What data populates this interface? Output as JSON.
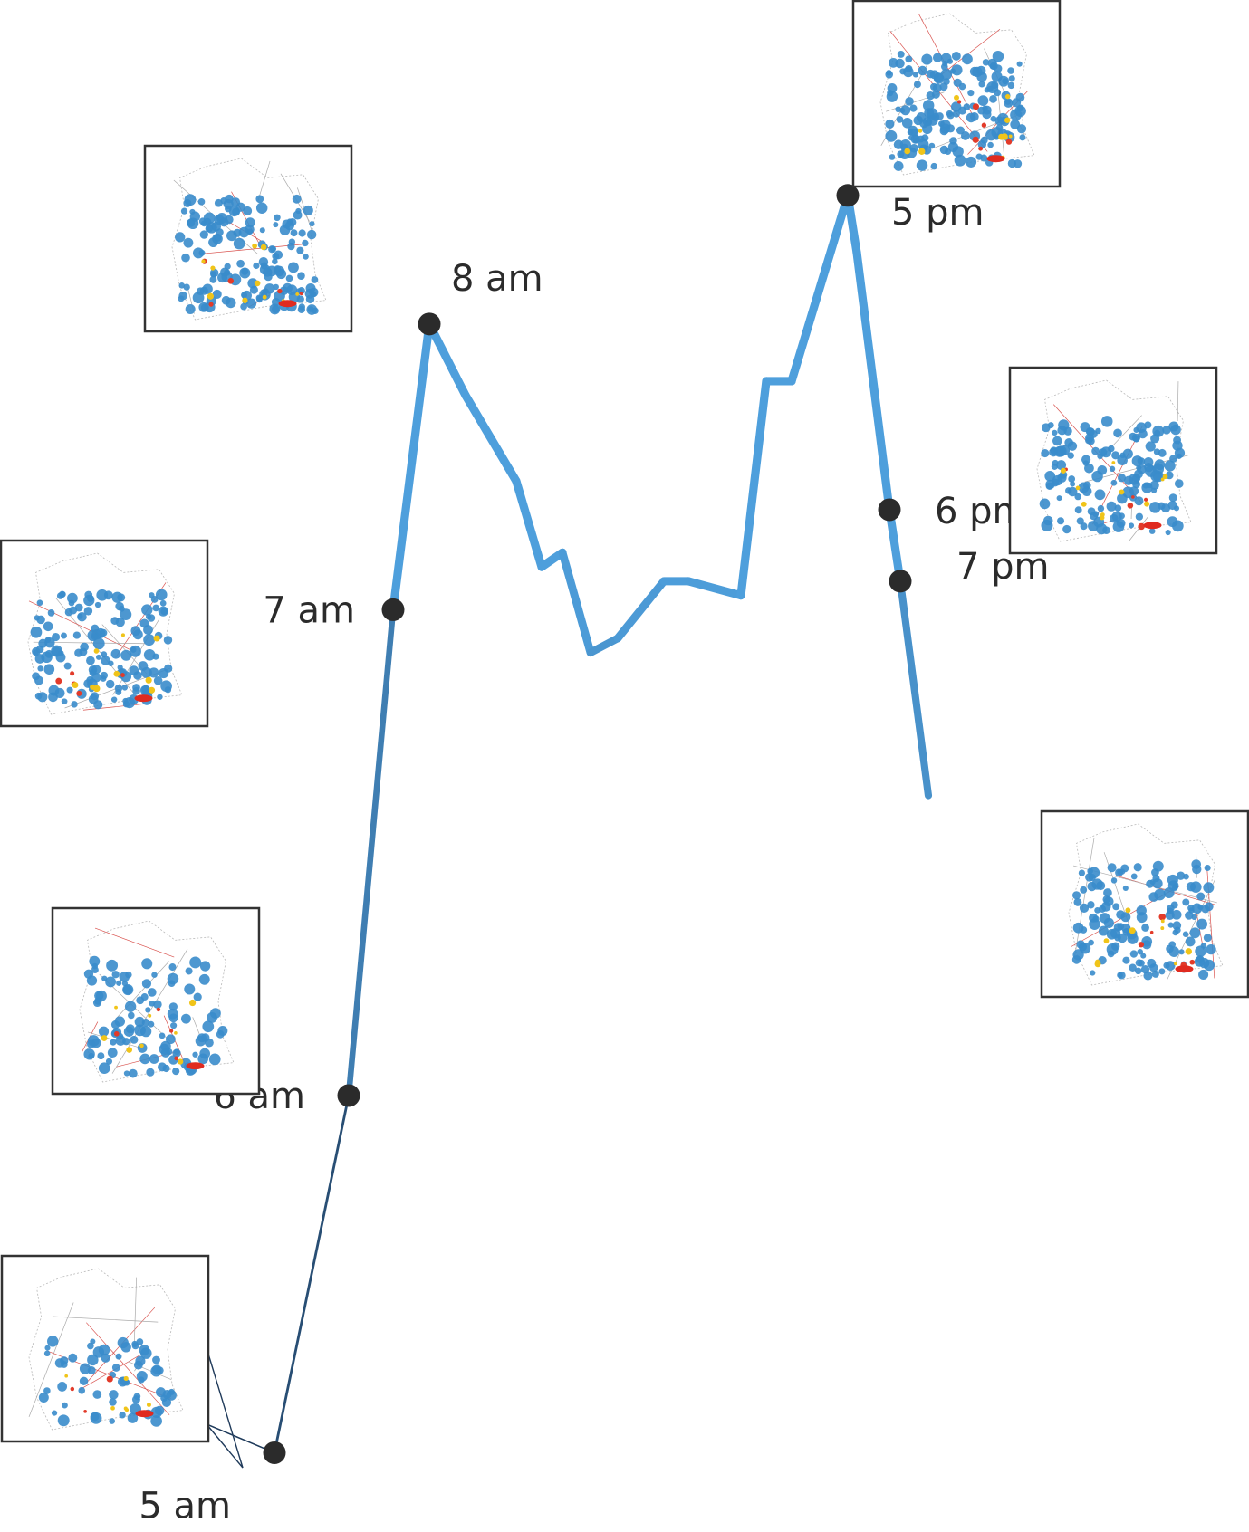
{
  "chart_data": {
    "type": "line",
    "title": "",
    "xlabel": "",
    "ylabel": "",
    "line_color_low": "#1f3a5a",
    "line_color_high": "#4e9fdc",
    "marker_color": "#2b2b2b",
    "series": [
      {
        "values": [
          0.04,
          0.02,
          0.27,
          0.61,
          0.81,
          0.76,
          0.7,
          0.64,
          0.65,
          0.58,
          0.59,
          0.63,
          0.63,
          0.62,
          0.77,
          0.77,
          0.9,
          0.86,
          0.68,
          0.63,
          0.48
        ]
      }
    ],
    "labeled_points": [
      {
        "label": "5 am",
        "index": 1
      },
      {
        "label": "6 am",
        "index": 2
      },
      {
        "label": "7 am",
        "index": 3
      },
      {
        "label": "8 am",
        "index": 4
      },
      {
        "label": "5 pm",
        "index": 16
      },
      {
        "label": "6 pm",
        "index": 18
      },
      {
        "label": "7 pm",
        "index": 19
      }
    ],
    "thumbnails": [
      {
        "label": "5 am",
        "icon": "map-thumbnail-icon"
      },
      {
        "label": "6 am",
        "icon": "map-thumbnail-icon"
      },
      {
        "label": "7 am",
        "icon": "map-thumbnail-icon"
      },
      {
        "label": "8 am",
        "icon": "map-thumbnail-icon"
      },
      {
        "label": "5 pm",
        "icon": "map-thumbnail-icon"
      },
      {
        "label": "6 pm",
        "icon": "map-thumbnail-icon"
      },
      {
        "label": "7 pm",
        "icon": "map-thumbnail-icon"
      }
    ]
  }
}
